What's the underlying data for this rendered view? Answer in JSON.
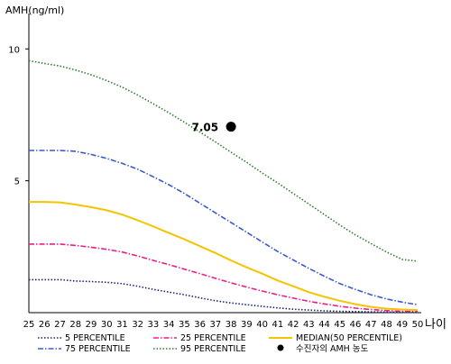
{
  "chart_data": {
    "type": "line",
    "ylabel": "AMH(ng/ml)",
    "xlabel": "나이",
    "xlim": [
      25,
      50
    ],
    "ylim": [
      0,
      11
    ],
    "x_ticks": [
      25,
      26,
      27,
      28,
      29,
      30,
      31,
      32,
      33,
      34,
      35,
      36,
      37,
      38,
      39,
      40,
      41,
      42,
      43,
      44,
      45,
      46,
      47,
      48,
      49,
      50
    ],
    "y_ticks": [
      5,
      10
    ],
    "grid": false,
    "legend_position": "bottom",
    "x": [
      25,
      26,
      27,
      28,
      29,
      30,
      31,
      32,
      33,
      34,
      35,
      36,
      37,
      38,
      39,
      40,
      41,
      42,
      43,
      44,
      45,
      46,
      47,
      48,
      49,
      50
    ],
    "series": [
      {
        "name": "5 PERCENTILE",
        "style": "dotted",
        "color": "#1a237e",
        "values": [
          1.25,
          1.25,
          1.25,
          1.2,
          1.18,
          1.15,
          1.1,
          1.0,
          0.88,
          0.78,
          0.68,
          0.56,
          0.45,
          0.37,
          0.3,
          0.24,
          0.18,
          0.13,
          0.1,
          0.07,
          0.05,
          0.04,
          0.03,
          0.02,
          0.02,
          0.02
        ]
      },
      {
        "name": "25 PERCENTILE",
        "style": "dashdot",
        "color": "#e91e8c",
        "values": [
          2.6,
          2.6,
          2.6,
          2.55,
          2.48,
          2.4,
          2.3,
          2.15,
          1.98,
          1.82,
          1.65,
          1.48,
          1.3,
          1.13,
          0.97,
          0.82,
          0.68,
          0.55,
          0.43,
          0.33,
          0.24,
          0.17,
          0.12,
          0.08,
          0.05,
          0.05
        ]
      },
      {
        "name": "MEDIAN(50 PERCENTILE)",
        "style": "solid",
        "color": "#f5c400",
        "values": [
          4.2,
          4.2,
          4.18,
          4.1,
          4.0,
          3.88,
          3.72,
          3.5,
          3.27,
          3.02,
          2.78,
          2.52,
          2.26,
          1.98,
          1.72,
          1.48,
          1.22,
          1.0,
          0.78,
          0.6,
          0.45,
          0.32,
          0.22,
          0.15,
          0.12,
          0.1
        ]
      },
      {
        "name": "75 PERCENTILE",
        "style": "dashdot",
        "color": "#3a5bc7",
        "values": [
          6.15,
          6.15,
          6.15,
          6.12,
          6.0,
          5.85,
          5.66,
          5.44,
          5.15,
          4.85,
          4.52,
          4.15,
          3.78,
          3.42,
          3.05,
          2.68,
          2.32,
          2.0,
          1.68,
          1.38,
          1.1,
          0.88,
          0.68,
          0.52,
          0.4,
          0.3
        ]
      },
      {
        "name": "95 PERCENTILE",
        "style": "dotted",
        "color": "#2e7d32",
        "values": [
          9.55,
          9.45,
          9.35,
          9.2,
          9.02,
          8.8,
          8.55,
          8.25,
          7.92,
          7.58,
          7.22,
          6.85,
          6.47,
          6.08,
          5.7,
          5.3,
          4.92,
          4.52,
          4.12,
          3.72,
          3.32,
          2.95,
          2.62,
          2.3,
          2.02,
          1.95
        ]
      }
    ],
    "marker": {
      "name": "수진자의 AMH 농도",
      "x": 38,
      "y": 7.05,
      "label": "7.05",
      "color": "#000000"
    }
  }
}
